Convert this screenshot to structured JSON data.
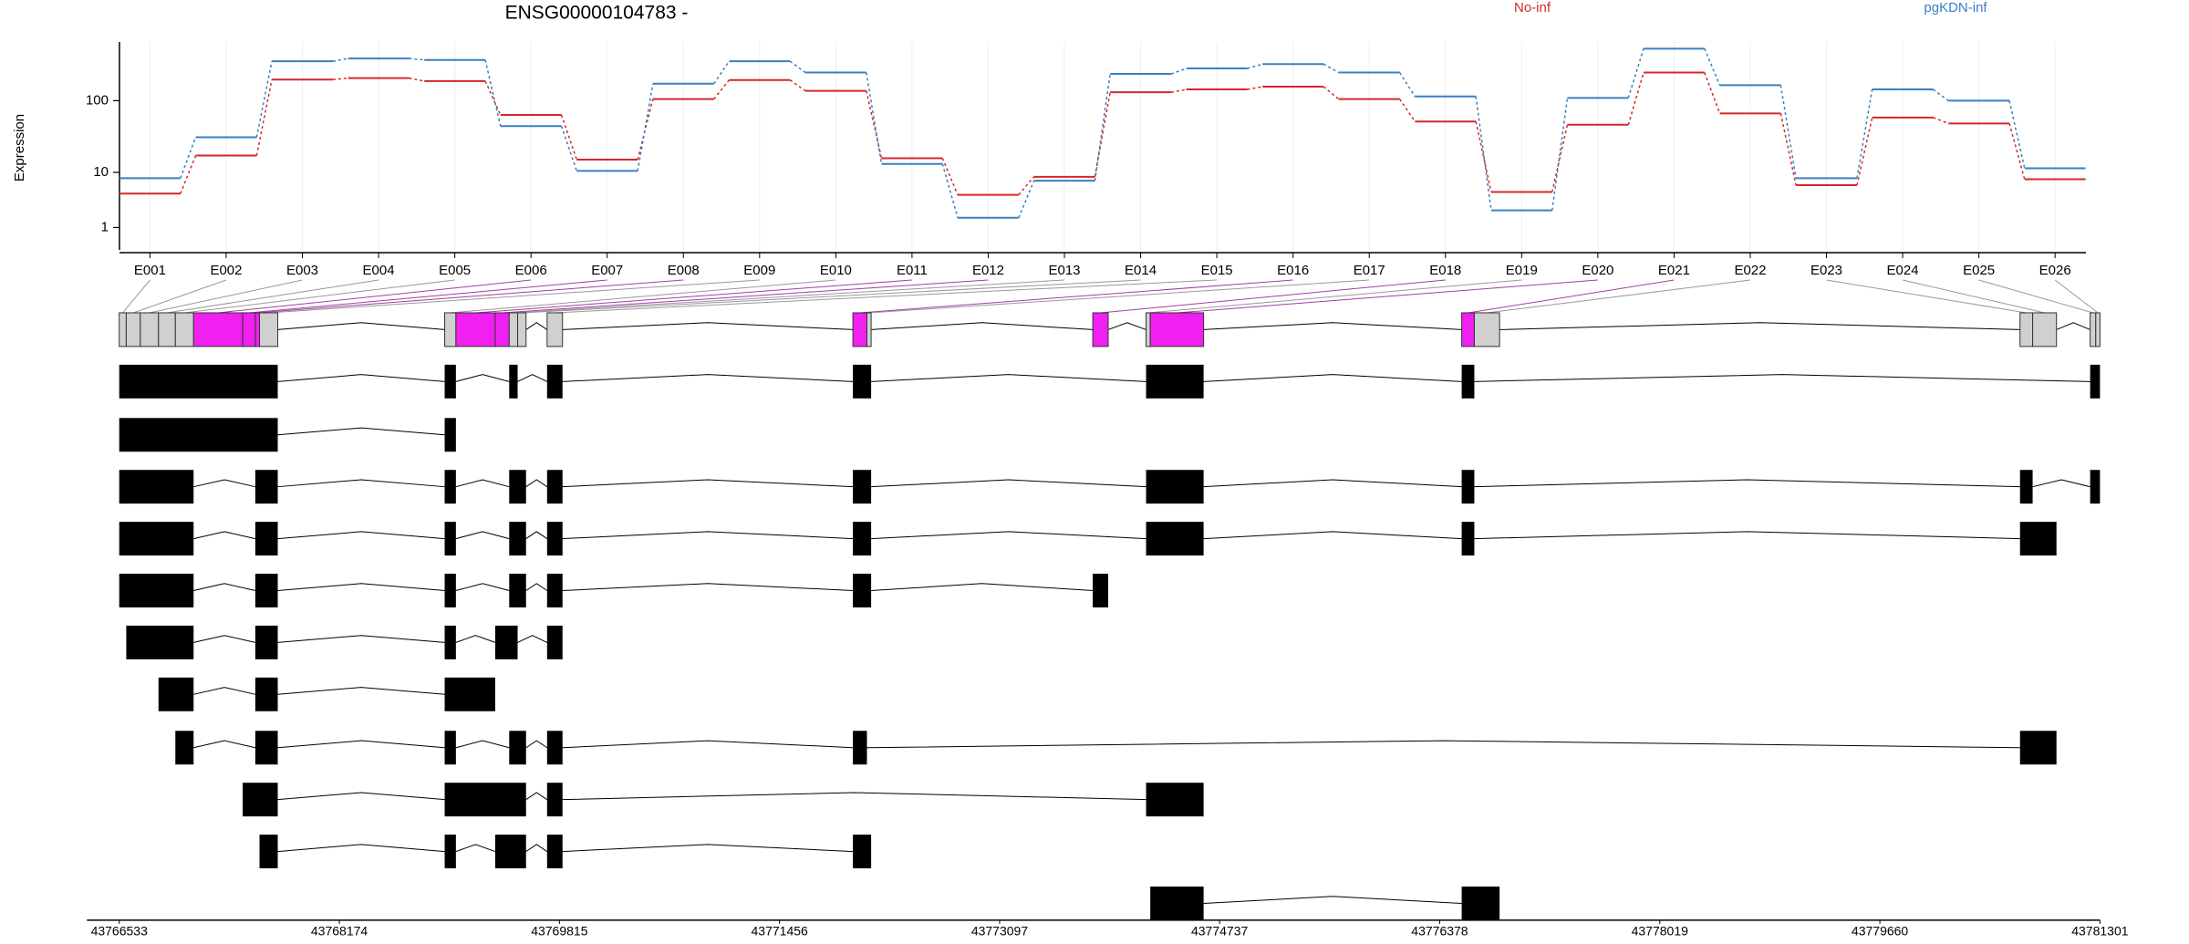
{
  "chart_data": {
    "type": "line",
    "title": "ENSG00000104783 -",
    "y_label": "Expression",
    "yscale": "log1p",
    "grid": true,
    "legend": "top",
    "categories": [
      "E001",
      "E002",
      "E003",
      "E004",
      "E005",
      "E006",
      "E007",
      "E008",
      "E009",
      "E010",
      "E011",
      "E012",
      "E013",
      "E014",
      "E015",
      "E016",
      "E017",
      "E018",
      "E019",
      "E020",
      "E021",
      "E022",
      "E023",
      "E024",
      "E025",
      "E026"
    ],
    "series": [
      {
        "name": "No-inf",
        "color": "#d62728",
        "values": [
          4.7,
          17.5,
          193,
          202,
          184,
          64,
          15.3,
          105,
          190,
          136,
          16,
          4.5,
          8.6,
          130,
          142,
          155,
          105,
          52,
          5,
          47,
          240,
          67,
          6.4,
          59,
          49,
          7.9
        ]
      },
      {
        "name": "pgKDN-inf",
        "color": "#3a7fc1",
        "values": [
          8.2,
          31.6,
          341,
          371,
          355,
          45,
          10.5,
          170,
          341,
          240,
          13.3,
          1.7,
          7.5,
          230,
          273,
          312,
          240,
          114,
          2.4,
          109,
          504,
          162,
          8.2,
          142,
          100,
          11.5
        ]
      }
    ],
    "ylim": [
      0,
      620
    ],
    "yticks": [
      1,
      10,
      100
    ],
    "gene_model": {
      "xlim": [
        43766533,
        43781301
      ],
      "xticks": [
        43766533,
        43768174,
        43769815,
        43771456,
        43773097,
        43774737,
        43776378,
        43778019,
        43779660,
        43781301
      ]
    }
  }
}
